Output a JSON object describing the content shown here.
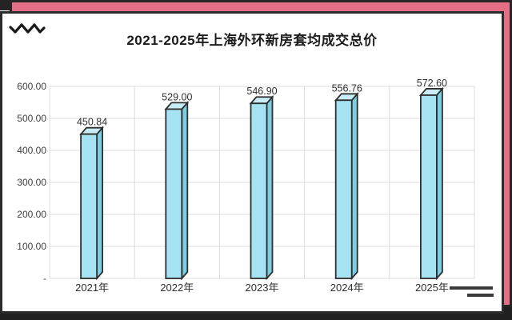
{
  "frame": {
    "accent_pink": "#e46e85",
    "frame_dark": "#262626",
    "icons": {
      "top_left": "zigzag-wave-icon",
      "bottom_right": "double-underline-icon"
    }
  },
  "chart": {
    "title": "2021-2025年上海外环新房套均成交总价"
  },
  "chart_data": {
    "type": "bar",
    "title": "2021-2025年上海外环新房套均成交总价",
    "categories": [
      "2021年",
      "2022年",
      "2023年",
      "2024年",
      "2025年"
    ],
    "values": [
      450.84,
      529.0,
      546.9,
      556.76,
      572.6
    ],
    "value_labels": [
      "450.84",
      "529.00",
      "546.90",
      "556.76",
      "572.60"
    ],
    "xlabel": "",
    "ylabel": "",
    "ylim": [
      0,
      600
    ],
    "ytick_step": 100,
    "ytick_labels_top_to_bottom": [
      "600.00",
      "500.00",
      "400.00",
      "300.00",
      "200.00",
      "100.00",
      "-"
    ],
    "grid": true,
    "legend": "none",
    "bar_style": "3d-cuboid",
    "colors": {
      "bar_front": "#a5e3f2",
      "bar_side": "#7ccfe2",
      "bar_top": "#c9edf6",
      "bar_stroke": "#2e2e2e",
      "gridline": "#dcdcdc",
      "value_label_text": "#303030",
      "axis_text": "#3d3d3d",
      "category_text": "#2e2e2e"
    }
  }
}
